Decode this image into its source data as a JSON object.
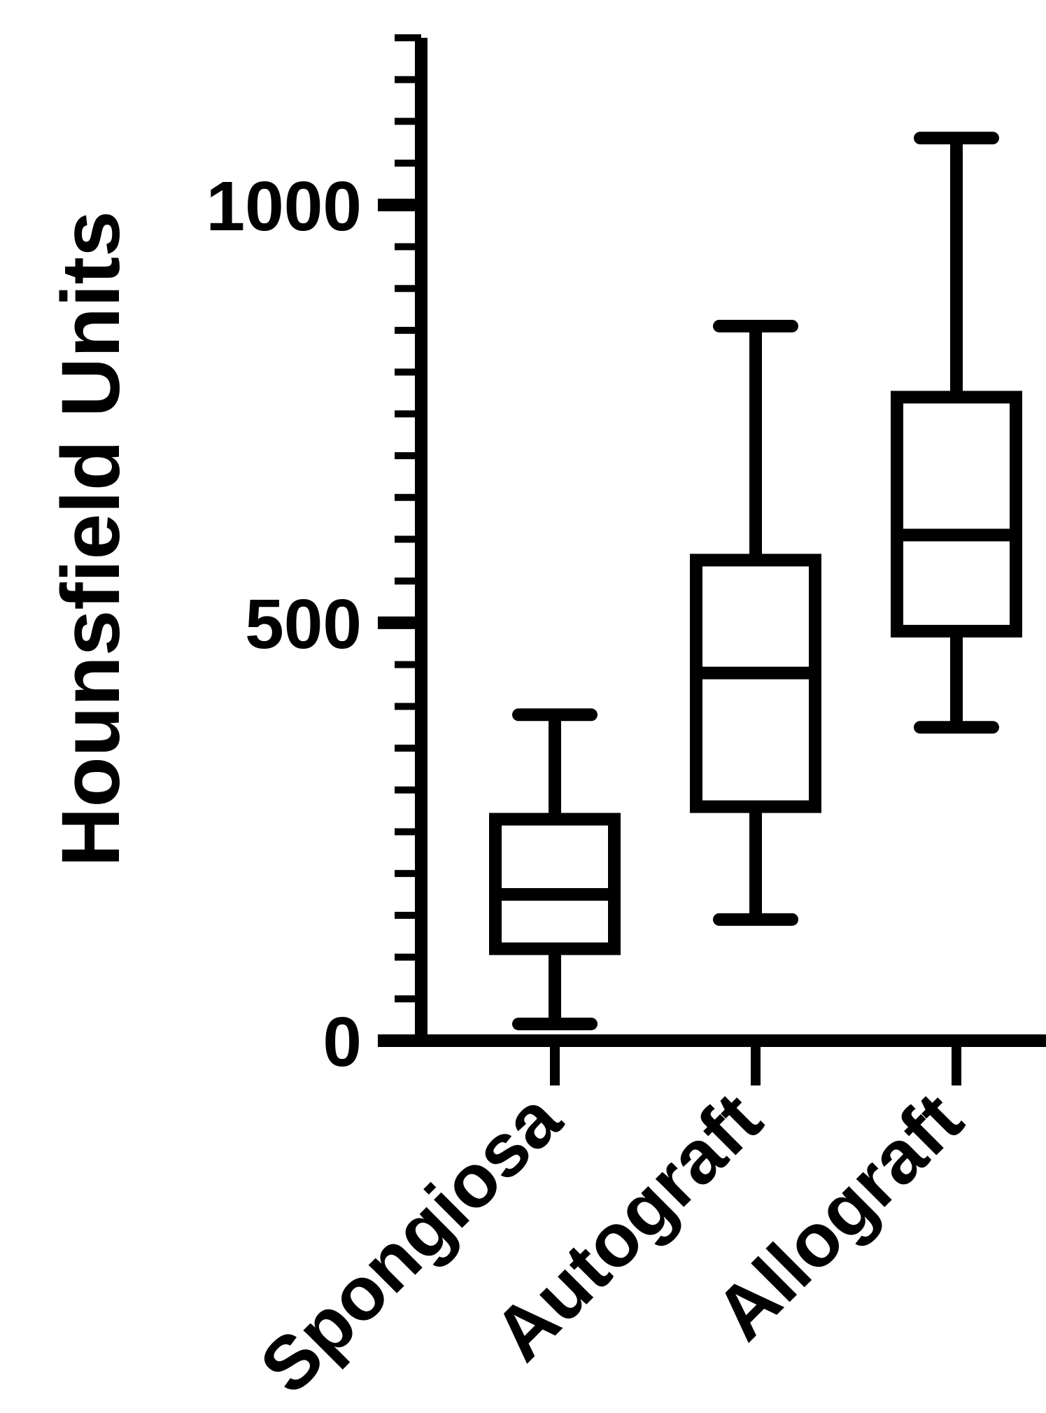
{
  "chart_data": {
    "type": "box",
    "ylabel": "Hounsfield Units",
    "ylim": [
      0,
      1200
    ],
    "yticks": [
      0,
      500,
      1000
    ],
    "ytick_labels": [
      "0",
      "500",
      "1000"
    ],
    "minor_tick_step": 50,
    "categories": [
      "Spongiosa",
      "Autograft",
      "Allograft"
    ],
    "boxes": [
      {
        "name": "Spongiosa",
        "min": 20,
        "q1": 110,
        "median": 175,
        "q3": 265,
        "max": 390
      },
      {
        "name": "Autograft",
        "min": 145,
        "q1": 280,
        "median": 440,
        "q3": 575,
        "max": 855
      },
      {
        "name": "Allograft",
        "min": 375,
        "q1": 490,
        "median": 605,
        "q3": 770,
        "max": 1080
      }
    ],
    "color": "#000000"
  }
}
